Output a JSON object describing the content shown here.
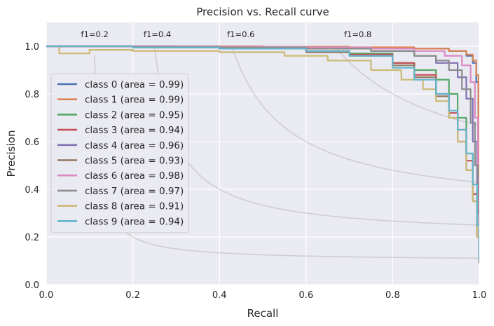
{
  "chart_data": {
    "type": "line",
    "title": "Precision vs. Recall curve",
    "xlabel": "Recall",
    "ylabel": "Precision",
    "xlim": [
      0,
      1
    ],
    "ylim": [
      0,
      1.1
    ],
    "xticks": [
      "0.0",
      "0.2",
      "0.4",
      "0.6",
      "0.8",
      "1.0"
    ],
    "yticks": [
      "0.0",
      "0.2",
      "0.4",
      "0.6",
      "0.8",
      "1.0"
    ],
    "grid": true,
    "legend_position": "center-left",
    "iso_f1": [
      {
        "f": 0.2,
        "label": "f1=0.2"
      },
      {
        "f": 0.4,
        "label": "f1=0.4"
      },
      {
        "f": 0.6,
        "label": "f1=0.6"
      },
      {
        "f": 0.8,
        "label": "f1=0.8"
      }
    ],
    "series": [
      {
        "name": "class 0 (area = 0.99)",
        "color": "#4c72b0",
        "x": [
          0.0,
          0.1,
          0.3,
          0.5,
          0.7,
          0.85,
          0.93,
          0.97,
          0.985,
          0.993,
          0.998,
          1.0
        ],
        "y": [
          1.0,
          1.0,
          0.999,
          0.998,
          0.995,
          0.99,
          0.98,
          0.96,
          0.93,
          0.85,
          0.55,
          0.1
        ]
      },
      {
        "name": "class 1 (area = 0.99)",
        "color": "#dd8452",
        "x": [
          0.0,
          0.1,
          0.3,
          0.5,
          0.7,
          0.85,
          0.93,
          0.97,
          0.985,
          0.993,
          0.998,
          1.0
        ],
        "y": [
          1.0,
          1.0,
          1.0,
          0.998,
          0.996,
          0.99,
          0.98,
          0.965,
          0.94,
          0.88,
          0.6,
          0.1
        ]
      },
      {
        "name": "class 2 (area = 0.95)",
        "color": "#55a868",
        "x": [
          0.0,
          0.2,
          0.4,
          0.6,
          0.7,
          0.8,
          0.85,
          0.9,
          0.93,
          0.95,
          0.97,
          0.985,
          0.995,
          1.0
        ],
        "y": [
          1.0,
          0.995,
          0.99,
          0.98,
          0.97,
          0.93,
          0.9,
          0.86,
          0.8,
          0.7,
          0.55,
          0.38,
          0.2,
          0.1
        ]
      },
      {
        "name": "class 3 (area = 0.94)",
        "color": "#c44e52",
        "x": [
          0.0,
          0.2,
          0.4,
          0.6,
          0.7,
          0.8,
          0.85,
          0.9,
          0.93,
          0.95,
          0.97,
          0.985,
          0.995,
          1.0
        ],
        "y": [
          1.0,
          0.995,
          0.99,
          0.98,
          0.965,
          0.93,
          0.88,
          0.8,
          0.72,
          0.65,
          0.52,
          0.38,
          0.2,
          0.1
        ]
      },
      {
        "name": "class 4 (area = 0.96)",
        "color": "#8172b3",
        "x": [
          0.0,
          0.2,
          0.4,
          0.6,
          0.75,
          0.85,
          0.9,
          0.95,
          0.97,
          0.985,
          0.995,
          1.0
        ],
        "y": [
          1.0,
          0.998,
          0.995,
          0.99,
          0.98,
          0.96,
          0.93,
          0.87,
          0.78,
          0.6,
          0.35,
          0.1
        ]
      },
      {
        "name": "class 5 (area = 0.93)",
        "color": "#937860",
        "x": [
          0.0,
          0.2,
          0.4,
          0.6,
          0.7,
          0.8,
          0.85,
          0.9,
          0.93,
          0.95,
          0.97,
          0.985,
          0.995,
          1.0
        ],
        "y": [
          1.0,
          0.995,
          0.99,
          0.975,
          0.96,
          0.92,
          0.87,
          0.79,
          0.7,
          0.6,
          0.48,
          0.35,
          0.2,
          0.09
        ]
      },
      {
        "name": "class 6 (area = 0.98)",
        "color": "#da8bc3",
        "x": [
          0.0,
          0.2,
          0.4,
          0.6,
          0.75,
          0.85,
          0.92,
          0.96,
          0.98,
          0.99,
          0.997,
          1.0
        ],
        "y": [
          1.0,
          1.0,
          0.998,
          0.995,
          0.99,
          0.98,
          0.96,
          0.92,
          0.85,
          0.7,
          0.45,
          0.1
        ]
      },
      {
        "name": "class 7 (area = 0.97)",
        "color": "#8c8c8c",
        "x": [
          0.0,
          0.2,
          0.4,
          0.6,
          0.75,
          0.85,
          0.9,
          0.93,
          0.96,
          0.98,
          0.99,
          0.997,
          1.0
        ],
        "y": [
          1.0,
          0.998,
          0.995,
          0.99,
          0.98,
          0.96,
          0.94,
          0.9,
          0.82,
          0.68,
          0.5,
          0.3,
          0.1
        ]
      },
      {
        "name": "class 8 (area = 0.91)",
        "color": "#ccb974",
        "x": [
          0.0,
          0.03,
          0.1,
          0.2,
          0.4,
          0.55,
          0.65,
          0.75,
          0.82,
          0.87,
          0.9,
          0.93,
          0.95,
          0.97,
          0.985,
          0.995,
          1.0
        ],
        "y": [
          1.0,
          0.97,
          0.985,
          0.98,
          0.975,
          0.96,
          0.94,
          0.9,
          0.86,
          0.82,
          0.77,
          0.7,
          0.6,
          0.48,
          0.35,
          0.2,
          0.1
        ]
      },
      {
        "name": "class 9 (area = 0.94)",
        "color": "#64b5cd",
        "x": [
          0.0,
          0.2,
          0.4,
          0.6,
          0.7,
          0.8,
          0.85,
          0.9,
          0.93,
          0.95,
          0.97,
          0.985,
          0.995,
          1.0
        ],
        "y": [
          1.0,
          0.995,
          0.99,
          0.98,
          0.96,
          0.91,
          0.86,
          0.8,
          0.73,
          0.65,
          0.55,
          0.42,
          0.25,
          0.1
        ]
      }
    ]
  }
}
